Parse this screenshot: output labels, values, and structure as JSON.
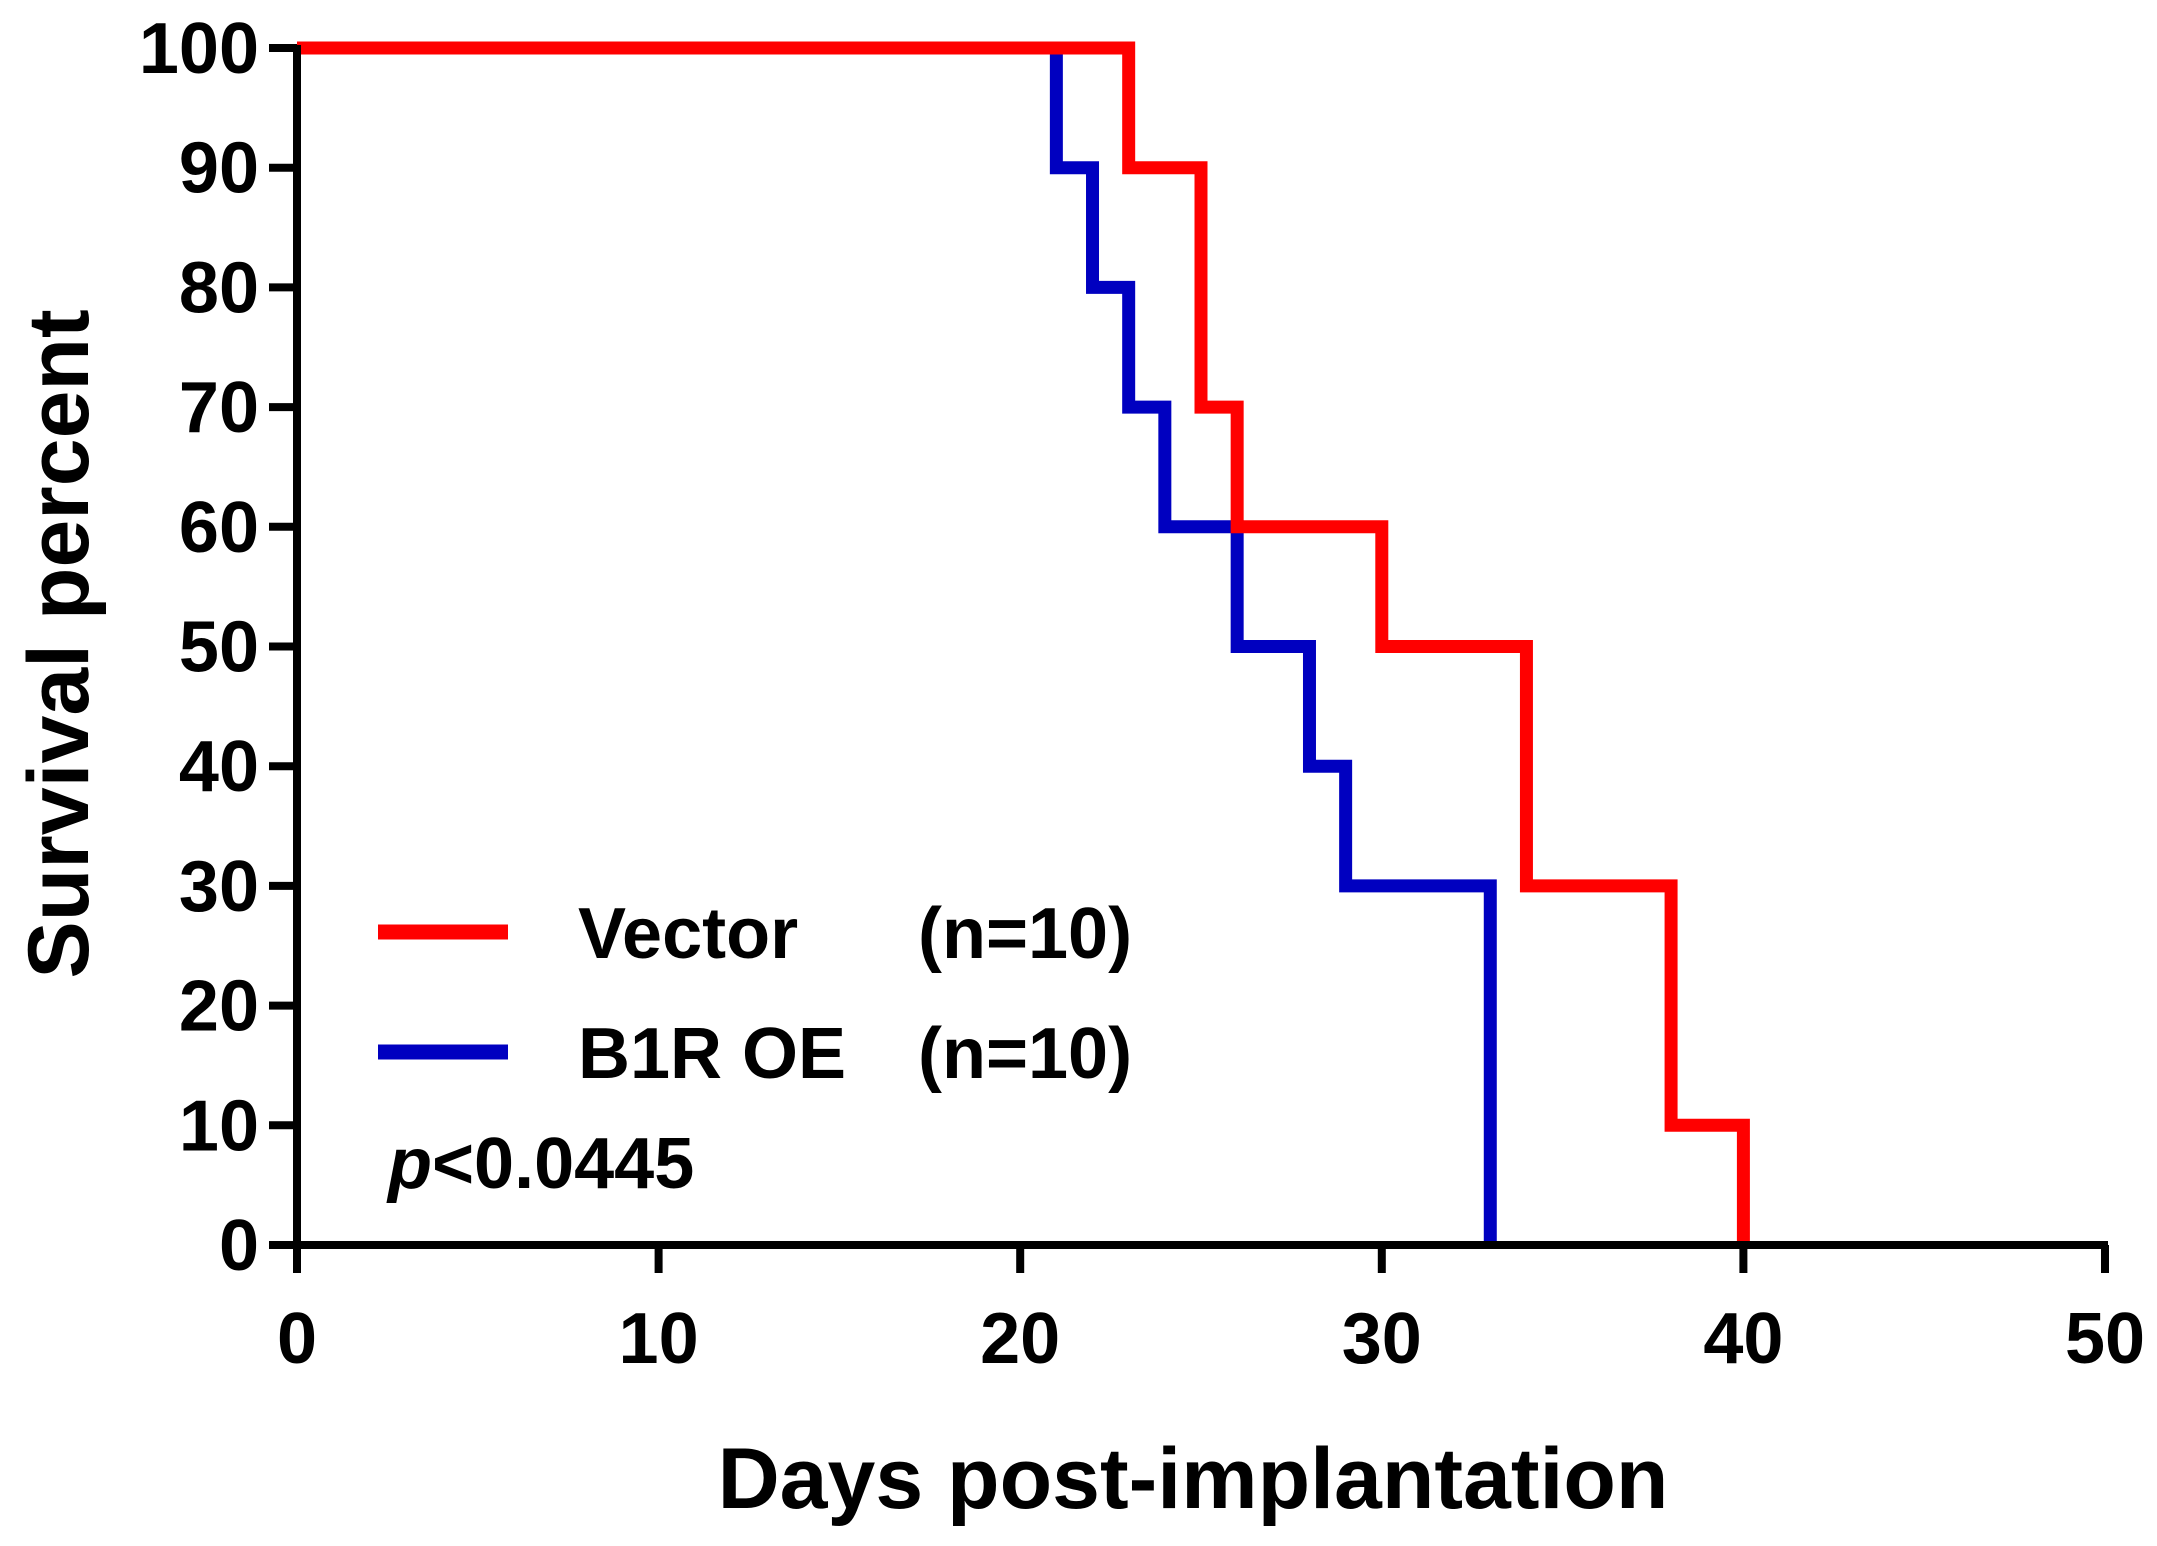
{
  "chart_data": {
    "type": "line",
    "subtype": "kaplan-meier-step",
    "title": "",
    "xlabel": "Days post-implantation",
    "ylabel": "Survival percent",
    "xlim": [
      0,
      50
    ],
    "ylim": [
      0,
      100
    ],
    "xticks": [
      0,
      10,
      20,
      30,
      40,
      50
    ],
    "yticks": [
      0,
      10,
      20,
      30,
      40,
      50,
      60,
      70,
      80,
      90,
      100
    ],
    "grid": false,
    "legend_position": "bottom-left",
    "annotation": {
      "italic": "p",
      "rest": "<0.0445"
    },
    "series": [
      {
        "name": "Vector",
        "n_label": "(n=10)",
        "color": "#ff0000",
        "x": [
          0,
          23,
          25,
          26,
          30,
          34,
          38,
          40
        ],
        "y": [
          100,
          90,
          70,
          60,
          50,
          30,
          10,
          0
        ]
      },
      {
        "name": "B1R OE",
        "n_label": "(n=10)",
        "color": "#0000c0",
        "x": [
          0,
          21,
          22,
          23,
          24,
          26,
          28,
          29,
          33
        ],
        "y": [
          100,
          90,
          80,
          70,
          60,
          50,
          40,
          30,
          0
        ]
      }
    ]
  }
}
